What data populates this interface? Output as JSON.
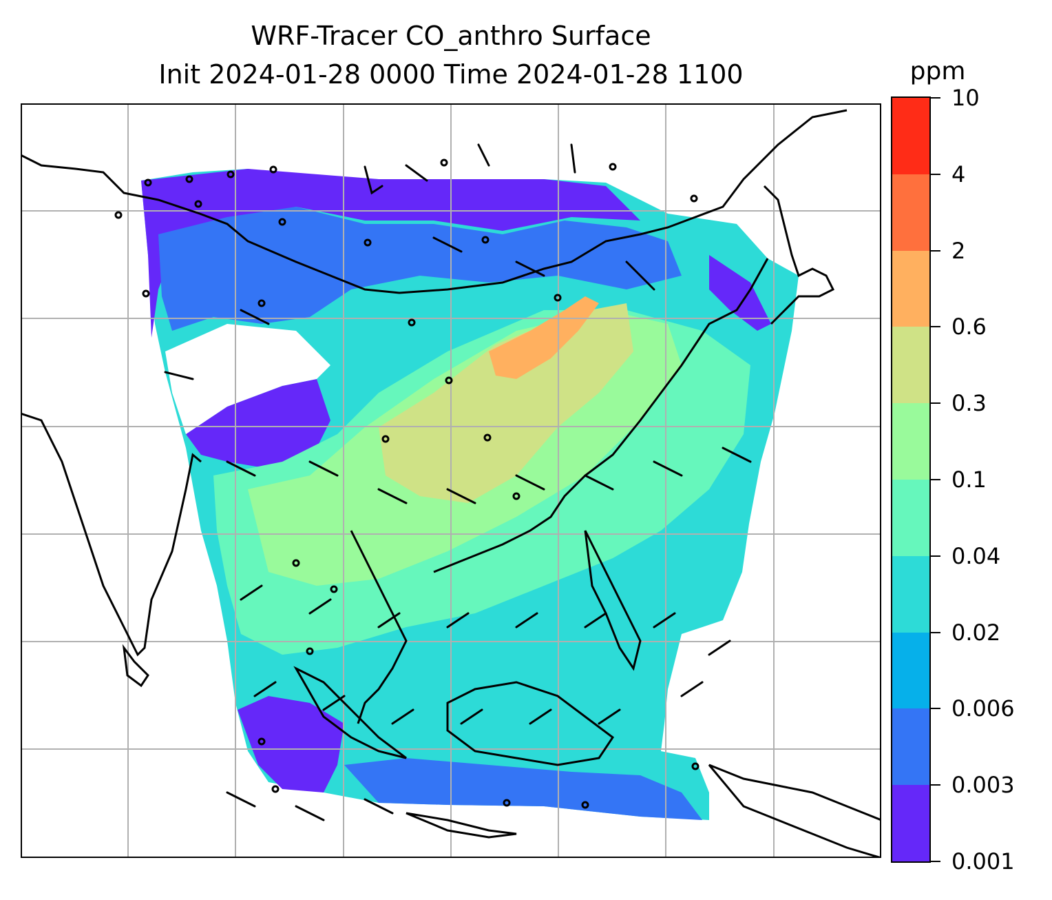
{
  "title": {
    "line1": "WRF-Tracer CO_anthro Surface",
    "line2": "Init 2024-01-28 0000 Time 2024-01-28 1100"
  },
  "colorbar": {
    "unit": "ppm",
    "ticks": [
      "0.001",
      "0.003",
      "0.006",
      "0.02",
      "0.04",
      "0.1",
      "0.3",
      "0.6",
      "2",
      "4",
      "10"
    ],
    "colors": [
      "#6528f9",
      "#3475f5",
      "#06b0ea",
      "#2ddbd7",
      "#66f7bc",
      "#99fa9b",
      "#cfe286",
      "#ffb05f",
      "#ff703d",
      "#ff2c17"
    ]
  },
  "map": {
    "gridlines": true,
    "coastline_color": "#000000",
    "grid_color": "#b0b0b0"
  }
}
